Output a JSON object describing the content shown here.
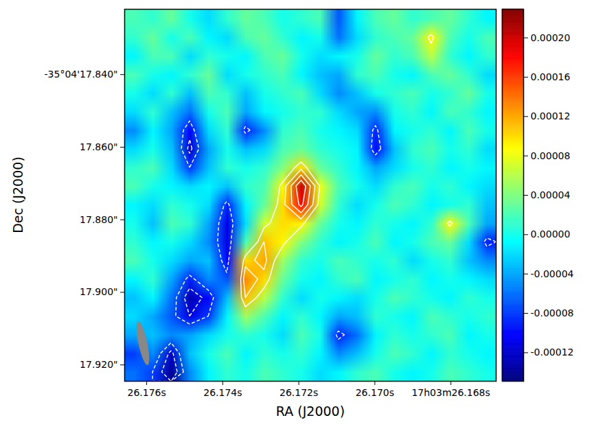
{
  "chart_data": {
    "type": "heatmap",
    "x_label": "RA (J2000)",
    "y_label": "Dec (J2000)",
    "xlim": [
      26.17658,
      26.16681
    ],
    "xticks": [
      {
        "value": 26.176,
        "label": "26.176s"
      },
      {
        "value": 26.174,
        "label": "26.174s"
      },
      {
        "value": 26.172,
        "label": "26.172s"
      },
      {
        "value": 26.17,
        "label": "26.170s"
      },
      {
        "value": 26.168,
        "label": "17h03m26.168s"
      }
    ],
    "ylim": [
      17.9245,
      17.822
    ],
    "yticks": [
      {
        "value": 17.84,
        "label": "-35°04'17.840\""
      },
      {
        "value": 17.86,
        "label": "17.860\""
      },
      {
        "value": 17.88,
        "label": "17.880\""
      },
      {
        "value": 17.9,
        "label": "17.900\""
      },
      {
        "value": 17.92,
        "label": "17.920\""
      }
    ],
    "grid": false,
    "cells": {
      "values": [
        [
          2e-05,
          1e-05,
          3e-05,
          0,
          -2e-05,
          1e-05,
          3e-05,
          2e-05,
          0,
          1e-05,
          2e-05,
          -7e-05,
          -1e-05,
          2e-05,
          3e-05,
          1e-05,
          2e-05,
          3e-05,
          1e-05,
          -1e-05
        ],
        [
          1e-05,
          3e-05,
          0,
          2e-05,
          -1e-05,
          -2e-05,
          2e-05,
          3e-05,
          1e-05,
          -1e-05,
          0,
          -6e-05,
          -2e-05,
          1e-05,
          2e-05,
          3e-05,
          9e-05,
          2e-05,
          0,
          2e-05
        ],
        [
          -1e-05,
          2e-05,
          2e-05,
          -2e-05,
          1e-05,
          0,
          -1e-05,
          2e-05,
          3e-05,
          0,
          -2e-05,
          -1e-05,
          0,
          3e-05,
          1e-05,
          2e-05,
          6e-05,
          1e-05,
          -1e-05,
          1e-05
        ],
        [
          2e-05,
          0,
          -1e-05,
          1e-05,
          3e-05,
          -2e-05,
          0,
          1e-05,
          2e-05,
          -1e-05,
          -3e-05,
          -4e-05,
          1e-05,
          2e-05,
          0,
          -1e-05,
          2e-05,
          3e-05,
          1e-05,
          -2e-05
        ],
        [
          0,
          -2e-05,
          1e-05,
          -3e-05,
          2e-05,
          1e-05,
          -3e-05,
          0,
          1e-05,
          2e-05,
          -2e-05,
          -5e-05,
          -3e-05,
          0,
          1e-05,
          2e-05,
          0,
          1e-05,
          3e-05,
          0
        ],
        [
          -2e-05,
          1e-05,
          -3e-05,
          -6e-05,
          0,
          2e-05,
          -4e-05,
          -1e-05,
          0,
          1e-05,
          1e-05,
          -2e-05,
          -4e-05,
          -5e-05,
          0,
          1e-05,
          -1e-05,
          2e-05,
          1e-05,
          -1e-05
        ],
        [
          -5e-05,
          -1e-05,
          -4e-05,
          -0.0001,
          -2e-05,
          1e-05,
          -9e-05,
          -5e-05,
          1e-05,
          2e-05,
          0,
          -1e-05,
          -2e-05,
          -9e-05,
          -1e-05,
          0,
          1e-05,
          -1e-05,
          2e-05,
          0
        ],
        [
          -2e-05,
          0,
          -3e-05,
          -0.00012,
          -4e-05,
          0,
          -3e-05,
          -2e-05,
          2e-05,
          3e-05,
          1e-05,
          0,
          -1e-05,
          -0.0001,
          -3e-05,
          1e-05,
          2e-05,
          0,
          1e-05,
          -2e-05
        ],
        [
          1e-05,
          2e-05,
          -2e-05,
          -8e-05,
          -3e-05,
          1e-05,
          0,
          1e-05,
          4e-05,
          0.0001,
          3e-05,
          1e-05,
          -1e-05,
          -4e-05,
          -2e-05,
          0,
          1e-05,
          -1e-05,
          0,
          -1e-05
        ],
        [
          2e-05,
          0,
          -1e-05,
          -2e-05,
          -1e-05,
          -3e-05,
          1e-05,
          2e-05,
          9e-05,
          0.0002,
          8e-05,
          2e-05,
          0,
          -2e-05,
          1e-05,
          2e-05,
          0,
          1e-05,
          -1e-05,
          -2e-05
        ],
        [
          -1e-05,
          -2e-05,
          1e-05,
          0,
          -2e-05,
          -9e-05,
          -1e-05,
          3e-05,
          0.0001,
          0.00018,
          7e-05,
          1e-05,
          -2e-05,
          0,
          2e-05,
          1e-05,
          -1e-05,
          0,
          1e-05,
          -3e-05
        ],
        [
          0,
          -3e-05,
          2e-05,
          1e-05,
          -4e-05,
          -0.00011,
          -2e-05,
          7e-05,
          0.0001,
          9e-05,
          3e-05,
          0,
          -1e-05,
          1e-05,
          0,
          -1e-05,
          1e-05,
          9e-05,
          2e-05,
          -4e-05
        ],
        [
          1e-05,
          -1e-05,
          0,
          -2e-05,
          -5e-05,
          -0.00011,
          2e-05,
          0.00011,
          9e-05,
          4e-05,
          1e-05,
          -1e-05,
          0,
          2e-05,
          -1e-05,
          0,
          2e-05,
          3e-05,
          -2e-05,
          -9e-05
        ],
        [
          2e-05,
          0,
          -2e-05,
          -4e-05,
          -3e-05,
          -0.0001,
          0.0001,
          0.00012,
          5e-05,
          1e-05,
          0,
          2e-05,
          1e-05,
          0,
          1e-05,
          -2e-05,
          0,
          1e-05,
          -3e-05,
          -5e-05
        ],
        [
          -1e-05,
          1e-05,
          -4e-05,
          -9e-05,
          -5e-05,
          -7e-05,
          0.00013,
          0.0001,
          3e-05,
          0,
          -1e-05,
          1e-05,
          2e-05,
          -1e-05,
          0,
          1e-05,
          -1e-05,
          0,
          -1e-05,
          -2e-05
        ],
        [
          -3e-05,
          -1e-05,
          -6e-05,
          -0.00013,
          -0.0001,
          -3e-05,
          0.00011,
          6e-05,
          1e-05,
          -2e-05,
          0,
          -1e-05,
          -2e-05,
          0,
          2e-05,
          1e-05,
          0,
          -1e-05,
          1e-05,
          0
        ],
        [
          -2e-05,
          -4e-05,
          -7e-05,
          -0.00011,
          -8e-05,
          -1e-05,
          5e-05,
          2e-05,
          -1e-05,
          1e-05,
          -1e-05,
          -4e-05,
          -3e-05,
          1e-05,
          0,
          -1e-05,
          2e-05,
          1e-05,
          0,
          1e-05
        ],
        [
          -4e-05,
          -3e-05,
          -5e-05,
          -4e-05,
          -2e-05,
          0,
          1e-05,
          0,
          -2e-05,
          2e-05,
          0,
          -9e-05,
          -6e-05,
          -1e-05,
          1e-05,
          0,
          1e-05,
          2e-05,
          -1e-05,
          0
        ],
        [
          -8e-05,
          -5e-05,
          -0.00012,
          -3e-05,
          0,
          2e-05,
          -1e-05,
          1e-05,
          0,
          1e-05,
          -1e-05,
          -5e-05,
          -3e-05,
          0,
          2e-05,
          1e-05,
          -1e-05,
          1e-05,
          0,
          -1e-05
        ],
        [
          -6e-05,
          -8e-05,
          -0.00014,
          -5e-05,
          -1e-05,
          1e-05,
          0,
          2e-05,
          1e-05,
          0,
          -2e-05,
          -1e-05,
          1e-05,
          2e-05,
          0,
          -1e-05,
          0,
          2e-05,
          1e-05,
          0
        ]
      ]
    },
    "colorbar": {
      "lim": [
        -0.000149,
        0.000229
      ],
      "ticks": [
        {
          "value": -0.00012,
          "label": "-0.00012"
        },
        {
          "value": -8e-05,
          "label": "-0.00008"
        },
        {
          "value": -4e-05,
          "label": "-0.00004"
        },
        {
          "value": 0,
          "label": "0.00000"
        },
        {
          "value": 4e-05,
          "label": "0.00004"
        },
        {
          "value": 8e-05,
          "label": "0.00008"
        },
        {
          "value": 0.00012,
          "label": "0.00012"
        },
        {
          "value": 0.00016,
          "label": "0.00016"
        },
        {
          "value": 0.0002,
          "label": "0.00020"
        }
      ]
    },
    "contours": {
      "levels": [
        -0.00011,
        -8e-05,
        8e-05,
        0.00011,
        0.00014,
        0.00017
      ],
      "color": "#ffffff"
    },
    "beam": {
      "x": 26.17609,
      "y": 17.9141,
      "major": 0.0123,
      "minor": 0.00246,
      "pa": 12
    }
  }
}
